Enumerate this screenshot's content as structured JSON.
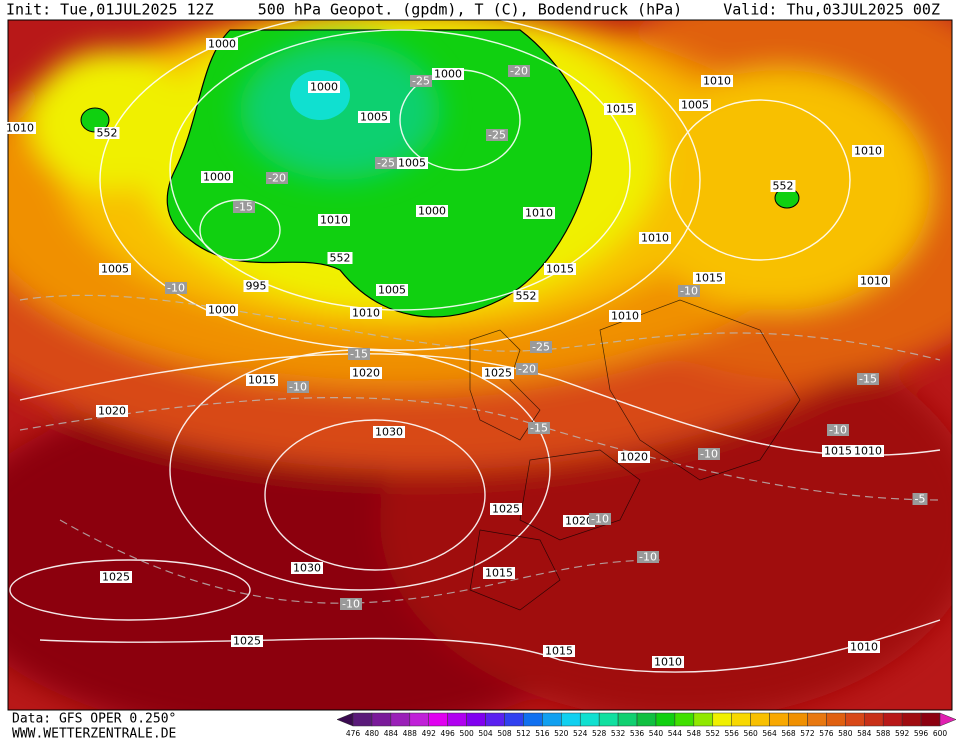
{
  "header": {
    "init": "Init: Tue,01JUL2025 12Z",
    "title": "500 hPa Geopot. (gpdm), T (C), Bodendruck (hPa)",
    "valid": "Valid: Thu,03JUL2025 00Z"
  },
  "footer": {
    "data": "Data: GFS OPER 0.250°",
    "site": "WWW.WETTERZENTRALE.DE"
  },
  "colorbar": {
    "labels": [
      "476",
      "480",
      "484",
      "488",
      "492",
      "496",
      "500",
      "504",
      "508",
      "512",
      "516",
      "520",
      "524",
      "528",
      "532",
      "536",
      "540",
      "544",
      "548",
      "552",
      "556",
      "560",
      "564",
      "568",
      "572",
      "576",
      "580",
      "584",
      "588",
      "592",
      "596",
      "600"
    ],
    "colors": [
      "#5a1a7a",
      "#7a1a9a",
      "#9a20b8",
      "#c020d8",
      "#e000f0",
      "#b000f0",
      "#8000f0",
      "#5a20f0",
      "#3040f0",
      "#1070f0",
      "#10a0f0",
      "#10d0f0",
      "#10e0d0",
      "#10e0a0",
      "#10d070",
      "#10c040",
      "#10d010",
      "#40e000",
      "#90e800",
      "#f0f000",
      "#f8d800",
      "#f8c000",
      "#f8a800",
      "#f09000",
      "#e87810",
      "#e06010",
      "#d84818",
      "#c83018",
      "#b81818",
      "#a00c10",
      "#8c0010"
    ],
    "low_color": "#3a0a50",
    "high_color": "#e020b0"
  },
  "map": {
    "pressure_labels": [
      "1000",
      "1000",
      "1000",
      "1005",
      "1005",
      "1000",
      "1010",
      "1000",
      "1010",
      "995",
      "1005",
      "1015",
      "1010",
      "1000",
      "1005",
      "1010",
      "1015",
      "1005",
      "1010",
      "1010",
      "1010",
      "1015",
      "1010",
      "1010",
      "1015",
      "1020",
      "1025",
      "1020",
      "1030",
      "1020",
      "1015",
      "1010",
      "1025",
      "1020",
      "1030",
      "1025",
      "1015",
      "1025",
      "1015",
      "1010",
      "1010"
    ],
    "height_labels": [
      "552",
      "552",
      "552",
      "552"
    ],
    "temperature_labels": [
      "-20",
      "-25",
      "-25",
      "-20",
      "-15",
      "-25",
      "-10",
      "-15",
      "-10",
      "-25",
      "-20",
      "-15",
      "-10",
      "-15",
      "-10",
      "-10",
      "-5",
      "-10",
      "-10",
      "-10"
    ]
  }
}
